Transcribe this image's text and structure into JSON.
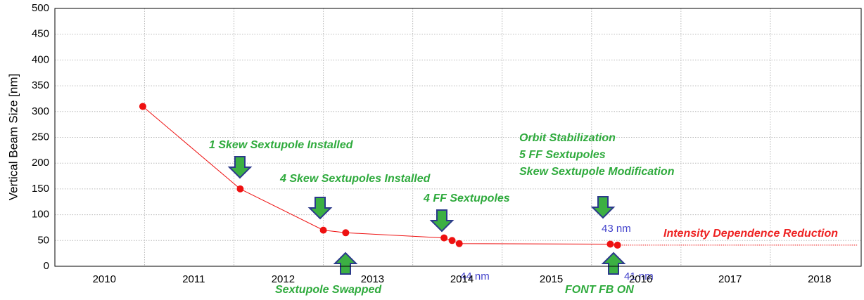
{
  "chart_data": {
    "type": "line",
    "ylabel": "Vertical Beam Size [nm]",
    "x": [
      2010.43,
      2011.52,
      2012.45,
      2012.7,
      2013.8,
      2013.89,
      2013.97,
      2015.66,
      2015.74
    ],
    "series": [
      {
        "color": "#ee1111",
        "values": [
          310,
          150,
          70,
          65,
          55,
          50,
          44,
          43,
          41
        ]
      }
    ],
    "trend": {
      "x": [
        2015.74,
        2018.43
      ],
      "values": [
        41,
        41
      ],
      "color": "#ee1111"
    },
    "xlim": [
      2009.447,
      2018.466
    ],
    "xticks": [
      2010,
      2011,
      2012,
      2013,
      2014,
      2015,
      2016,
      2017,
      2018
    ],
    "xgrid": [
      2010.45,
      2011.45,
      2012.45,
      2013.45,
      2014.45,
      2015.45,
      2016.45,
      2017.45
    ],
    "ylim": [
      0,
      500
    ],
    "yticks": [
      0,
      50,
      100,
      150,
      200,
      250,
      300,
      350,
      400,
      450,
      500
    ],
    "grid": true,
    "annotations": [
      "1 Skew Sextupole Installed",
      "4 Skew Sextupoles Installed",
      "4 FF Sextupoles",
      "Orbit Stabilization",
      "5 FF Sextupoles",
      "Skew Sextupole Modification",
      "Sextupole Swapped",
      "FONT FB ON",
      "Intensity Dependence Reduction"
    ],
    "value_labels": [
      "44 nm",
      "43 nm",
      "41 nm"
    ]
  }
}
